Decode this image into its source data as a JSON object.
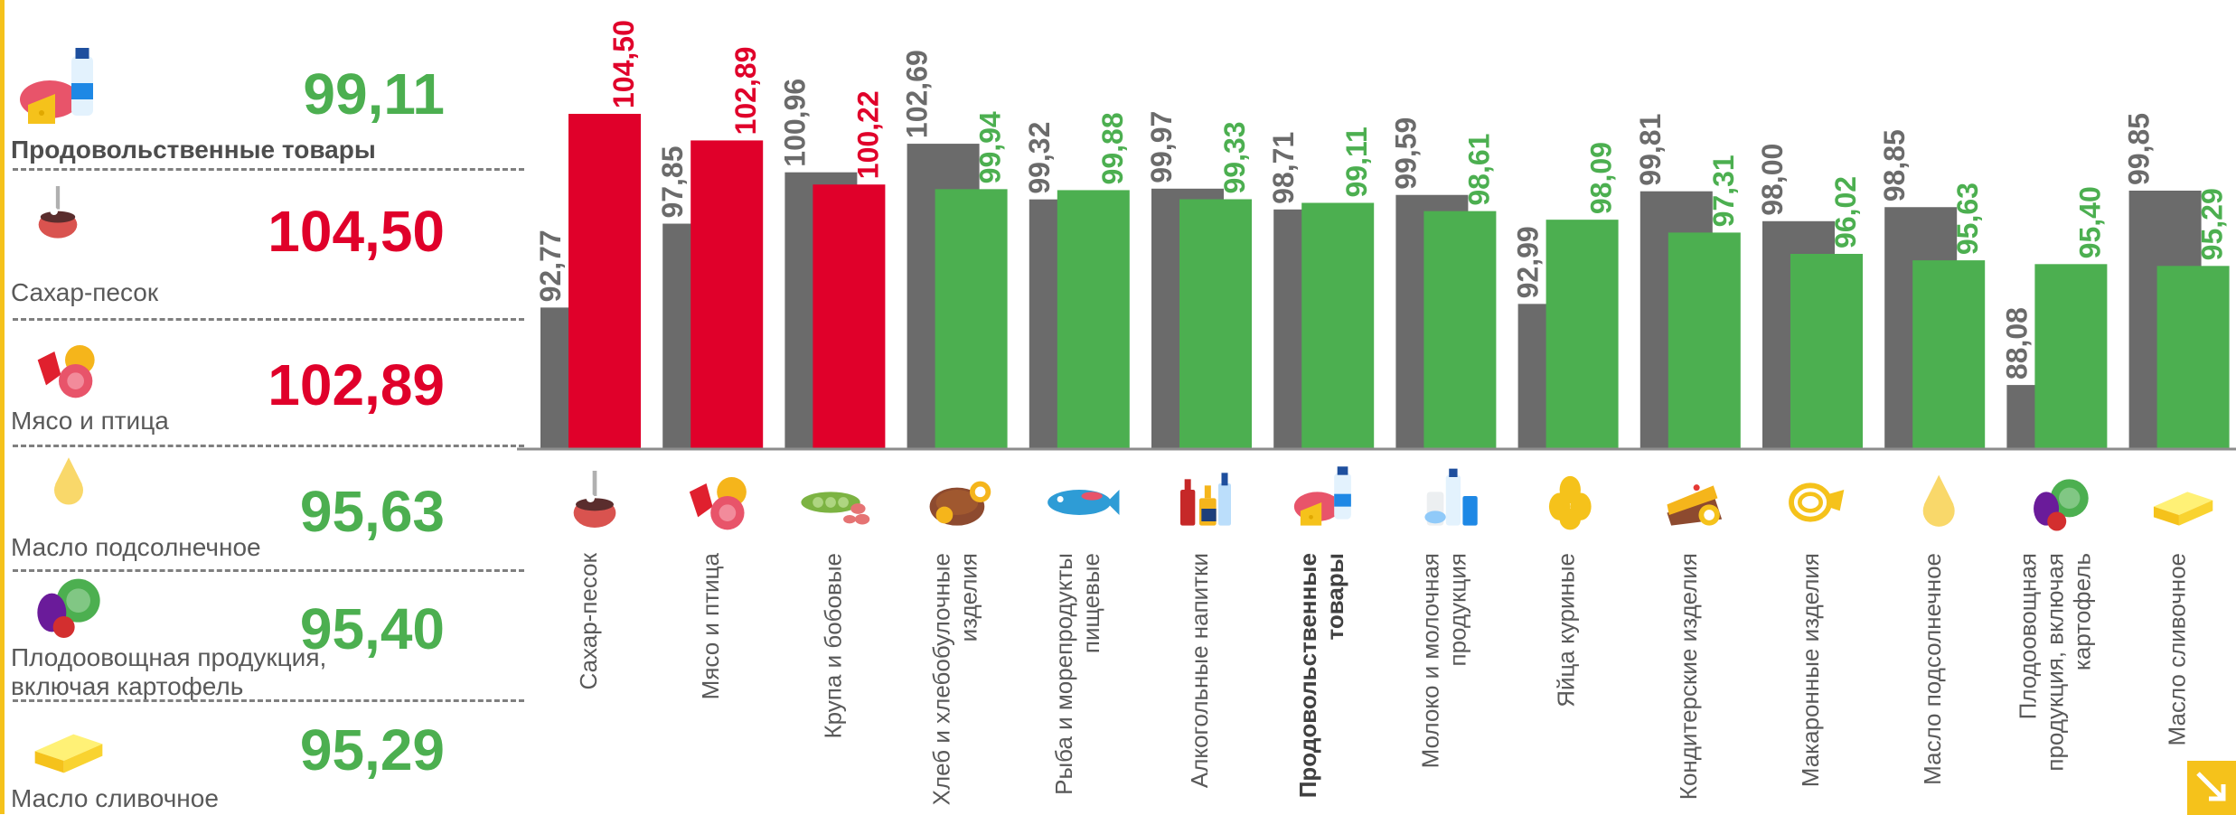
{
  "colors": {
    "gray": "#6b6b6b",
    "red": "#e0002a",
    "green": "#4caf50",
    "label": "#595959",
    "accent": "#f5c21b"
  },
  "summary": [
    {
      "label": "Продовольственные товары",
      "value": "99,11",
      "color": "green",
      "bold": true,
      "icon": "groceries-icon"
    },
    {
      "label": "Сахар-песок",
      "value": "104,50",
      "color": "red",
      "bold": false,
      "icon": "sugar-icon"
    },
    {
      "label": "Мясо и птица",
      "value": "102,89",
      "color": "red",
      "bold": false,
      "icon": "meat-icon"
    },
    {
      "label": "Масло подсолнечное",
      "value": "95,63",
      "color": "green",
      "bold": false,
      "icon": "oil-drop-icon"
    },
    {
      "label": "Плодоовощная продукция,\nвключая картофель",
      "value": "95,40",
      "color": "green",
      "bold": false,
      "icon": "vegetables-icon"
    },
    {
      "label": "Масло сливочное",
      "value": "95,29",
      "color": "green",
      "bold": false,
      "icon": "butter-icon"
    }
  ],
  "chart_data": {
    "type": "bar",
    "categories": [
      "Сахар-песок",
      "Мясо и птица",
      "Крупа и бобовые",
      "Хлеб и хлебобулочные изделия",
      "Рыба и морепродукты пищевые",
      "Алкогольные напитки",
      "Продовольственные товары",
      "Молоко и молочная продукция",
      "Яйца куриные",
      "Кондитерские изделия",
      "Макаронные изделия",
      "Масло подсолнечное",
      "Плодоовощная продукция, включая картофель",
      "Масло сливочное"
    ],
    "category_lines": [
      [
        "Сахар-песок"
      ],
      [
        "Мясо и птица"
      ],
      [
        "Крупа и бобовые"
      ],
      [
        "Хлеб и хлебобулочные",
        "изделия"
      ],
      [
        "Рыба и морепродукты",
        "пищевые"
      ],
      [
        "Алкогольные напитки"
      ],
      [
        "Продовольственные",
        "товары"
      ],
      [
        "Молоко и молочная",
        "продукция"
      ],
      [
        "Яйца куриные"
      ],
      [
        "Кондитерские изделия"
      ],
      [
        "Макаронные изделия"
      ],
      [
        "Масло подсолнечное"
      ],
      [
        "Плодоовощная",
        "продукция, включая",
        "картофель"
      ],
      [
        "Масло сливочное"
      ]
    ],
    "bold_categories": [
      "Продовольственные товары"
    ],
    "icons": [
      "sugar-icon",
      "meat-icon",
      "beans-icon",
      "bread-icon",
      "fish-icon",
      "drinks-icon",
      "groceries-icon",
      "milk-icon",
      "eggs-icon",
      "cake-icon",
      "pasta-icon",
      "oil-drop-icon",
      "vegetables-icon",
      "butter-icon"
    ],
    "series": [
      {
        "values": [
          92.77,
          97.85,
          100.96,
          102.69,
          99.32,
          99.97,
          98.71,
          99.59,
          92.99,
          99.81,
          98.0,
          98.85,
          88.08,
          99.85
        ],
        "labels": [
          "92,77",
          "97,85",
          "100,96",
          "102,69",
          "99,32",
          "99,97",
          "98,71",
          "99,59",
          "92,99",
          "99,81",
          "98,00",
          "98,85",
          "88,08",
          "99,85"
        ],
        "color": "gray"
      },
      {
        "values": [
          104.5,
          102.89,
          100.22,
          99.94,
          99.88,
          99.33,
          99.11,
          98.61,
          98.09,
          97.31,
          96.02,
          95.63,
          95.4,
          95.29
        ],
        "labels": [
          "104,50",
          "102,89",
          "100,22",
          "99,94",
          "99,88",
          "99,33",
          "99,11",
          "98,61",
          "98,09",
          "97,31",
          "96,02",
          "95,63",
          "95,40",
          "95,29"
        ],
        "colors": [
          "red",
          "red",
          "red",
          "green",
          "green",
          "green",
          "green",
          "green",
          "green",
          "green",
          "green",
          "green",
          "green",
          "green"
        ]
      }
    ],
    "ylim": [
      84.2,
      104.5
    ],
    "grid": false,
    "legend": "none"
  }
}
